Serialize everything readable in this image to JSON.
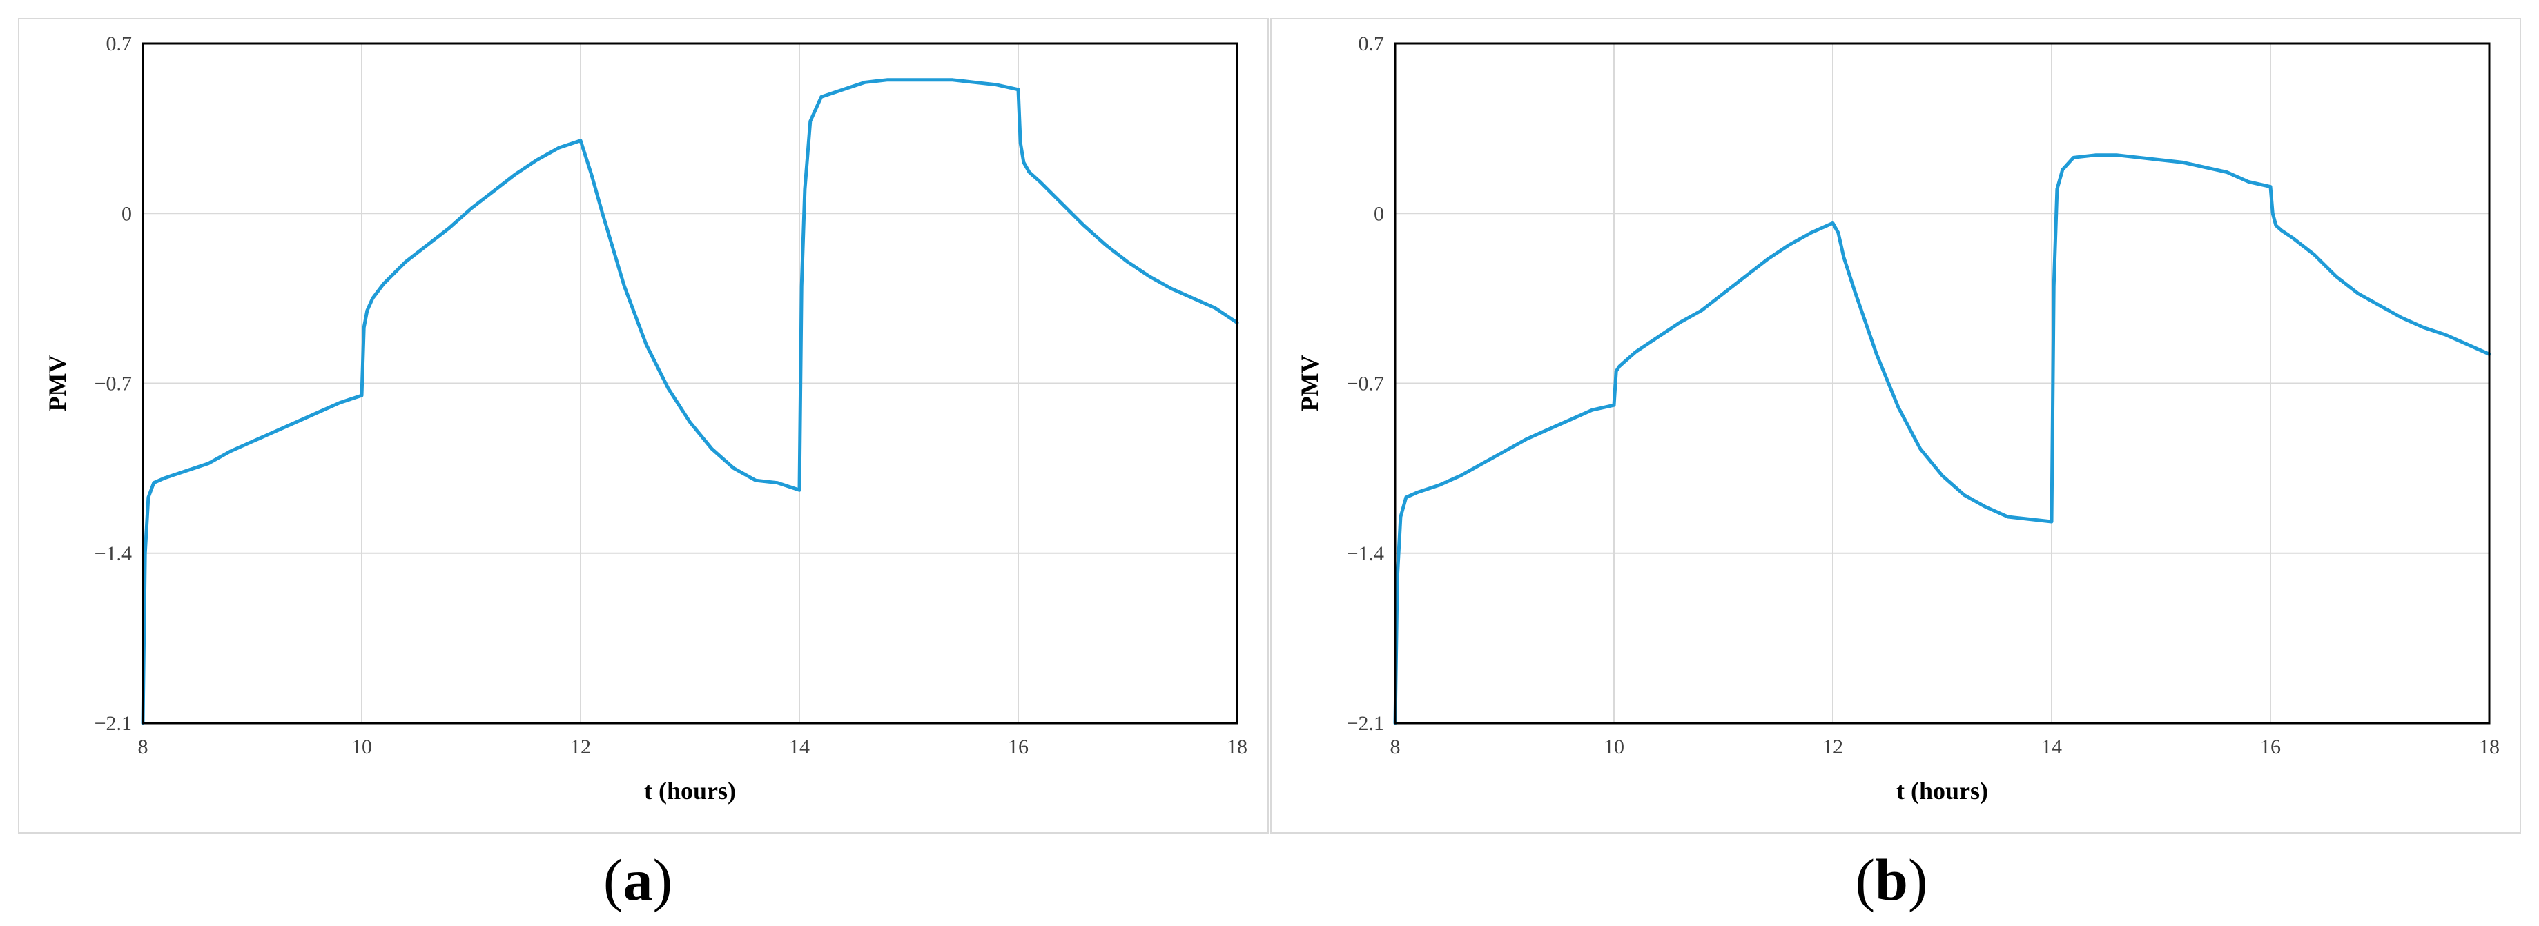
{
  "panels": [
    {
      "letter_open": "(",
      "letter": "a",
      "letter_close": ")"
    },
    {
      "letter_open": "(",
      "letter": "b",
      "letter_close": ")"
    }
  ],
  "colors": {
    "series": "#1f9bd7",
    "grid": "#d9d9d9",
    "axis": "#000000"
  },
  "chart_data": [
    {
      "type": "line",
      "title": "",
      "xlabel": "t (hours)",
      "ylabel": "PMV",
      "xlim": [
        8,
        18
      ],
      "ylim": [
        -2.1,
        0.7
      ],
      "xticks": [
        "8",
        "10",
        "12",
        "14",
        "16",
        "18"
      ],
      "yticks": [
        "-2.1",
        "-1.4",
        "-0.7",
        "0",
        "0.7"
      ],
      "grid": true,
      "series": [
        {
          "x": [
            8.0,
            8.02,
            8.05,
            8.1,
            8.2,
            8.4,
            8.6,
            8.8,
            9.0,
            9.2,
            9.4,
            9.6,
            9.8,
            10.0,
            10.02,
            10.05,
            10.1,
            10.2,
            10.4,
            10.6,
            10.8,
            11.0,
            11.2,
            11.4,
            11.6,
            11.8,
            12.0,
            12.1,
            12.2,
            12.4,
            12.6,
            12.8,
            13.0,
            13.2,
            13.4,
            13.6,
            13.8,
            14.0,
            14.02,
            14.05,
            14.1,
            14.2,
            14.4,
            14.6,
            14.8,
            15.0,
            15.2,
            15.4,
            15.6,
            15.8,
            16.0,
            16.02,
            16.05,
            16.1,
            16.2,
            16.4,
            16.6,
            16.8,
            17.0,
            17.2,
            17.4,
            17.6,
            17.8,
            18.0
          ],
          "y": [
            -2.1,
            -1.4,
            -1.17,
            -1.11,
            -1.09,
            -1.06,
            -1.03,
            -0.98,
            -0.94,
            -0.9,
            -0.86,
            -0.82,
            -0.78,
            -0.75,
            -0.47,
            -0.4,
            -0.35,
            -0.29,
            -0.2,
            -0.13,
            -0.06,
            0.02,
            0.09,
            0.16,
            0.22,
            0.27,
            0.3,
            0.16,
            0.0,
            -0.3,
            -0.54,
            -0.72,
            -0.86,
            -0.97,
            -1.05,
            -1.1,
            -1.11,
            -1.14,
            -0.3,
            0.1,
            0.38,
            0.48,
            0.51,
            0.54,
            0.55,
            0.55,
            0.55,
            0.55,
            0.54,
            0.53,
            0.51,
            0.29,
            0.21,
            0.17,
            0.13,
            0.04,
            -0.05,
            -0.13,
            -0.2,
            -0.26,
            -0.31,
            -0.35,
            -0.39,
            -0.45
          ]
        }
      ]
    },
    {
      "type": "line",
      "title": "",
      "xlabel": "t (hours)",
      "ylabel": "PMV",
      "xlim": [
        8,
        18
      ],
      "ylim": [
        -2.1,
        0.7
      ],
      "xticks": [
        "8",
        "10",
        "12",
        "14",
        "16",
        "18"
      ],
      "yticks": [
        "-2.1",
        "-1.4",
        "-0.7",
        "0",
        "0.7"
      ],
      "grid": true,
      "series": [
        {
          "x": [
            8.0,
            8.02,
            8.05,
            8.1,
            8.2,
            8.4,
            8.6,
            8.8,
            9.0,
            9.2,
            9.4,
            9.6,
            9.8,
            10.0,
            10.02,
            10.05,
            10.1,
            10.2,
            10.4,
            10.6,
            10.8,
            11.0,
            11.2,
            11.4,
            11.6,
            11.8,
            11.95,
            12.0,
            12.05,
            12.1,
            12.2,
            12.4,
            12.6,
            12.8,
            13.0,
            13.2,
            13.4,
            13.6,
            13.8,
            14.0,
            14.02,
            14.05,
            14.1,
            14.2,
            14.4,
            14.6,
            14.8,
            15.0,
            15.2,
            15.4,
            15.6,
            15.8,
            16.0,
            16.02,
            16.05,
            16.1,
            16.2,
            16.4,
            16.6,
            16.8,
            17.0,
            17.2,
            17.4,
            17.6,
            17.8,
            18.0
          ],
          "y": [
            -2.1,
            -1.5,
            -1.25,
            -1.17,
            -1.15,
            -1.12,
            -1.08,
            -1.03,
            -0.98,
            -0.93,
            -0.89,
            -0.85,
            -0.81,
            -0.79,
            -0.65,
            -0.63,
            -0.61,
            -0.57,
            -0.51,
            -0.45,
            -0.4,
            -0.33,
            -0.26,
            -0.19,
            -0.13,
            -0.08,
            -0.05,
            -0.04,
            -0.08,
            -0.18,
            -0.32,
            -0.58,
            -0.8,
            -0.97,
            -1.08,
            -1.16,
            -1.21,
            -1.25,
            -1.26,
            -1.27,
            -0.3,
            0.1,
            0.18,
            0.23,
            0.24,
            0.24,
            0.23,
            0.22,
            0.21,
            0.19,
            0.17,
            0.13,
            0.11,
            0.0,
            -0.05,
            -0.07,
            -0.1,
            -0.17,
            -0.26,
            -0.33,
            -0.38,
            -0.43,
            -0.47,
            -0.5,
            -0.54,
            -0.58
          ]
        }
      ]
    }
  ]
}
